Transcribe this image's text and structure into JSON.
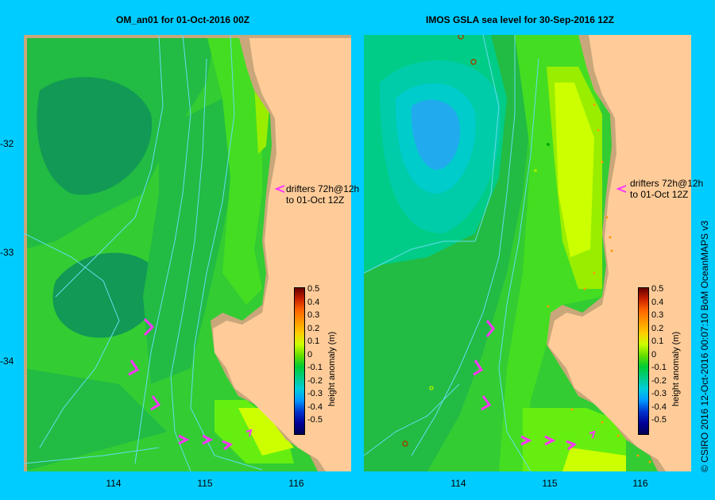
{
  "left_panel": {
    "title": "OM_an01  for 01-Oct-2016 00Z",
    "drifter_note_line1": "drifters 72h@12h",
    "drifter_note_line2": "to 01-Oct 12Z"
  },
  "right_panel": {
    "title": "IMOS GSLA sea level  for 30-Sep-2016 12Z",
    "drifter_note_line1": "drifters 72h@12h",
    "drifter_note_line2": "to 01-Oct 12Z"
  },
  "axes": {
    "lat_ticks": [
      "-32",
      "-33",
      "-34"
    ],
    "lon_ticks": [
      "114",
      "115",
      "116"
    ]
  },
  "colorbar": {
    "label": "height anomaly (m)",
    "ticks": [
      "0.5",
      "0.4",
      "0.3",
      "0.2",
      "0.1",
      "0",
      "-0.1",
      "-0.2",
      "-0.3",
      "-0.4",
      "-0.5"
    ],
    "colors": [
      "#660000",
      "#cc2200",
      "#ff6600",
      "#ff9900",
      "#ffcc00",
      "#ccff00",
      "#66dd00",
      "#00cc33",
      "#00cc88",
      "#00ccdd",
      "#0099ff",
      "#0033cc",
      "#000099",
      "#000055"
    ]
  },
  "credit": "© CSIRO 2016   12-Oct-2016 00:07:10 BoM OceanMAPS v3"
}
